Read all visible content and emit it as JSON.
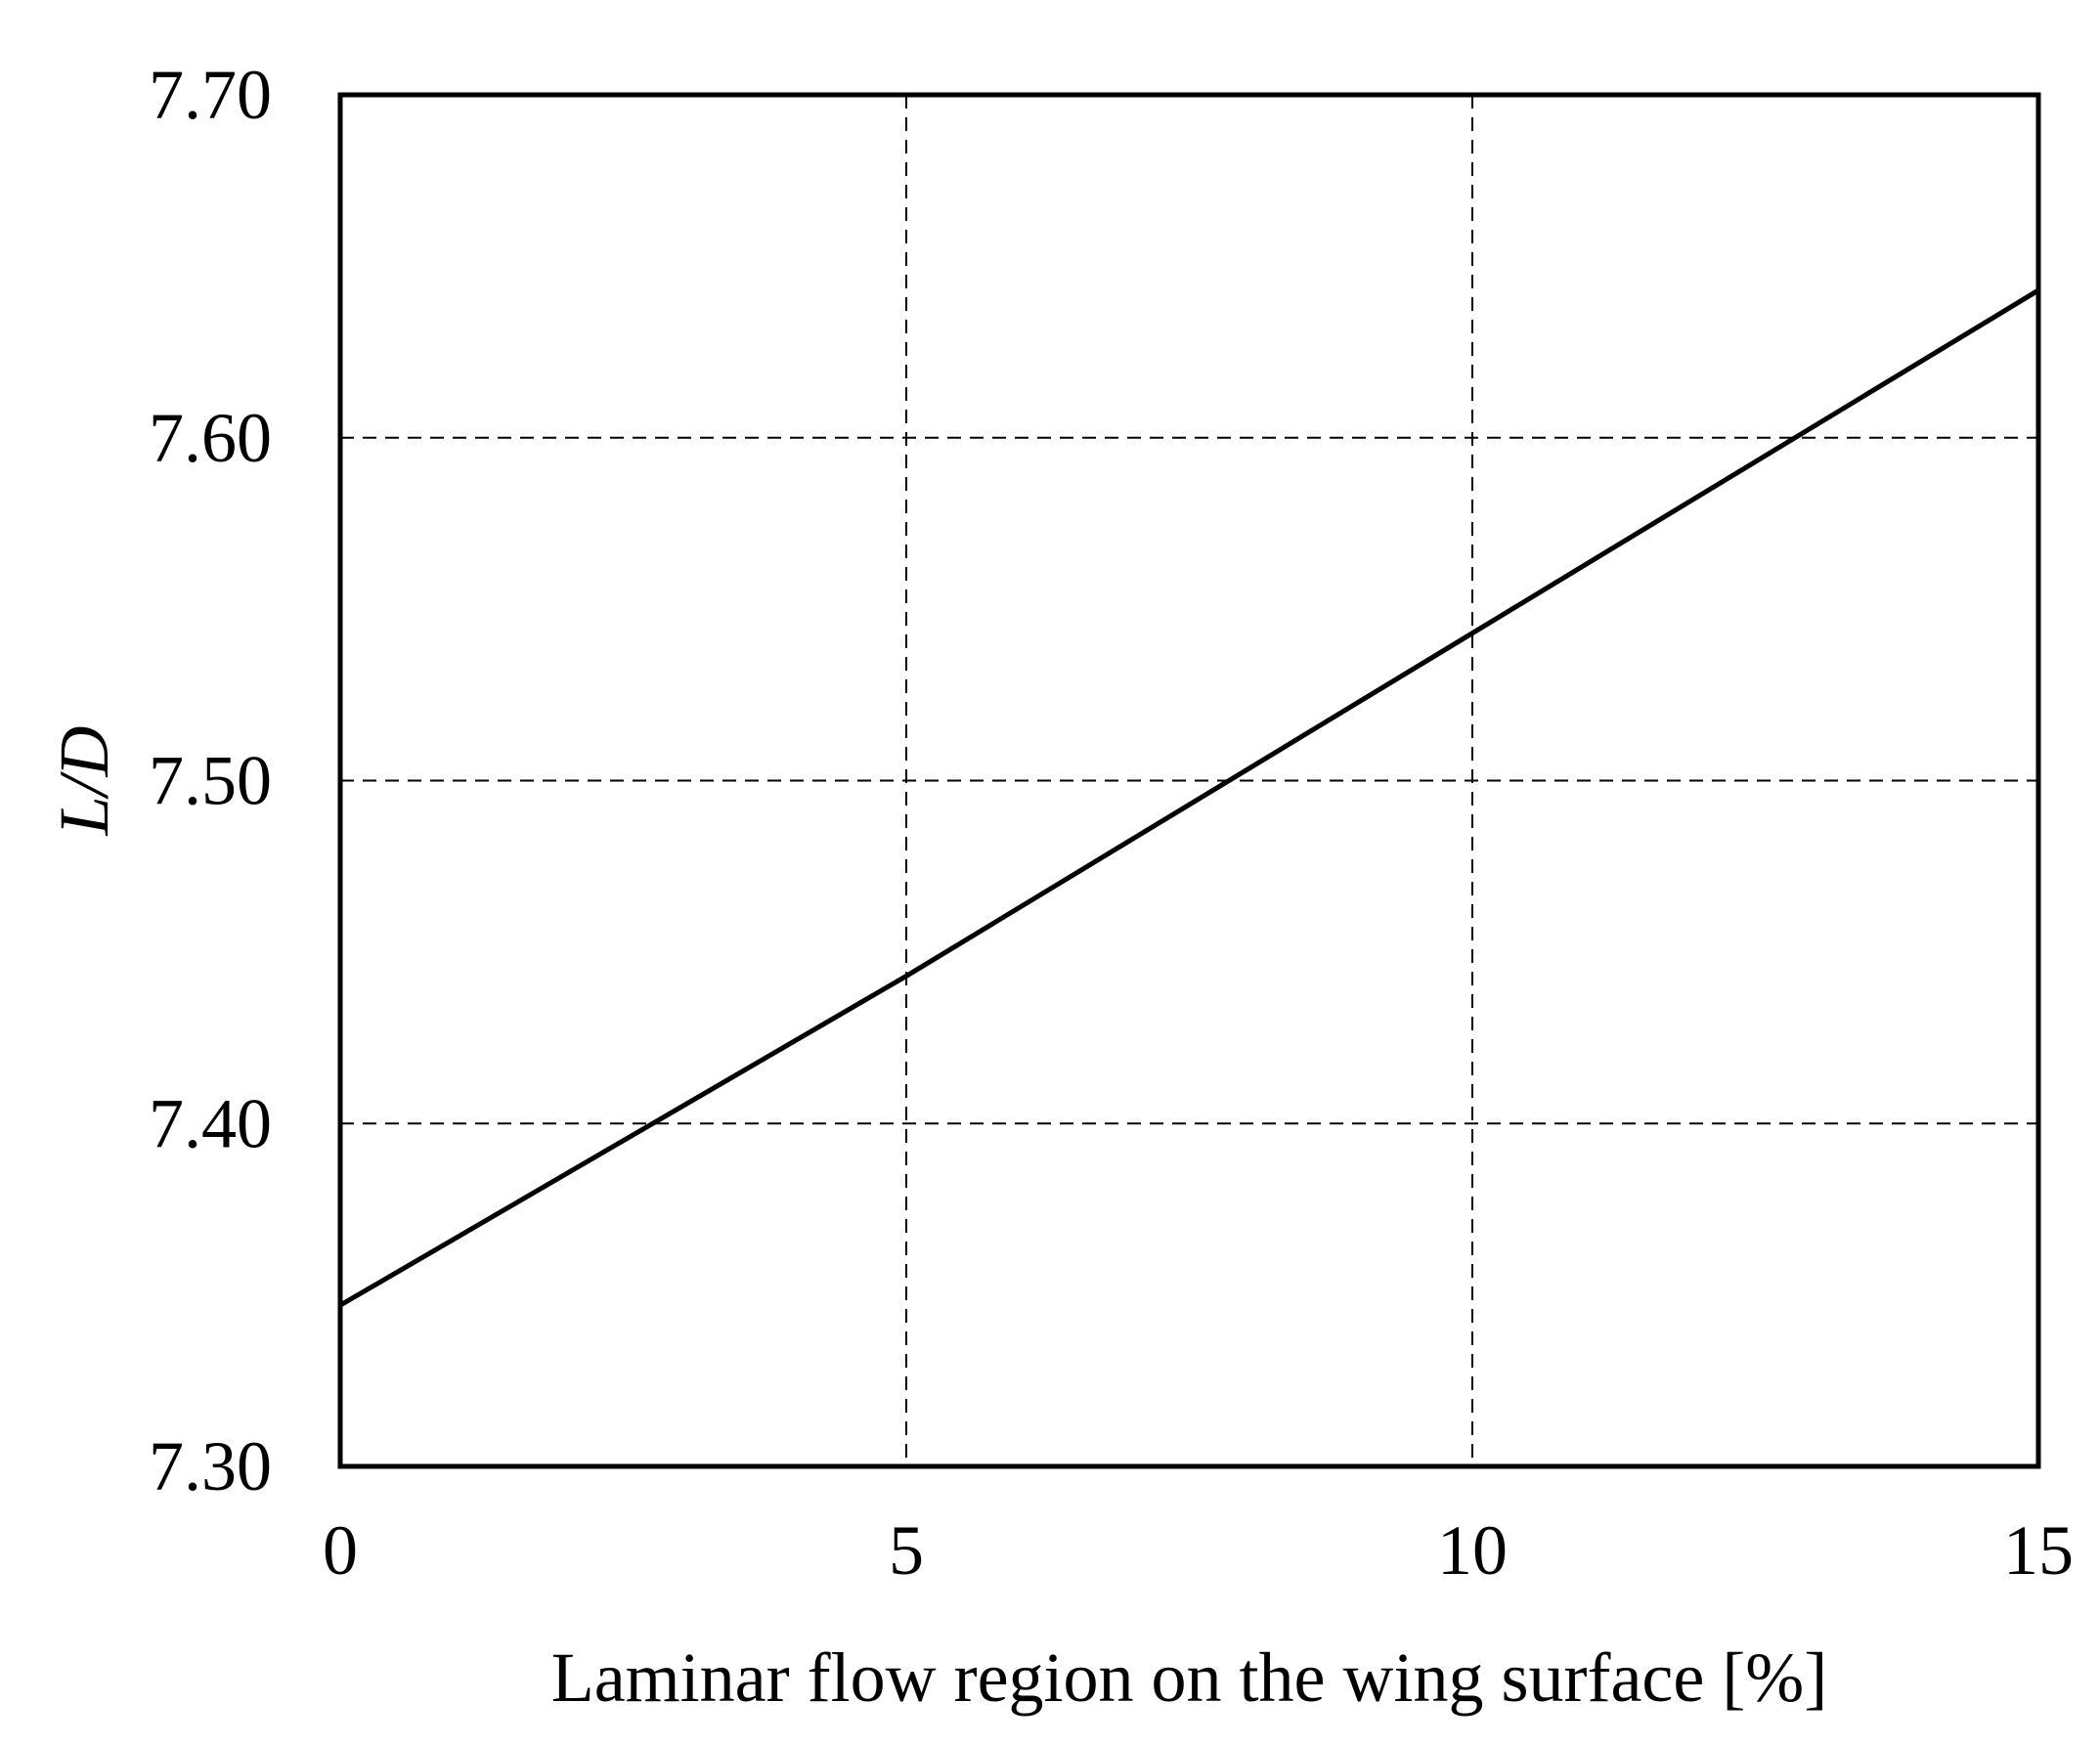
{
  "chart_data": {
    "type": "line",
    "title": "",
    "xlabel": "Laminar flow region on the wing surface [%]",
    "ylabel": "L/D",
    "xlim": [
      0,
      15
    ],
    "ylim": [
      7.3,
      7.7
    ],
    "x_ticks": [
      "0",
      "5",
      "10",
      "15"
    ],
    "y_ticks": [
      "7.30",
      "7.40",
      "7.50",
      "7.60",
      "7.70"
    ],
    "grid": true,
    "legend": "none",
    "series": [
      {
        "x": [
          0,
          5,
          10,
          15
        ],
        "y": [
          7.347,
          7.443,
          7.543,
          7.643
        ],
        "color": "#000000"
      }
    ]
  }
}
